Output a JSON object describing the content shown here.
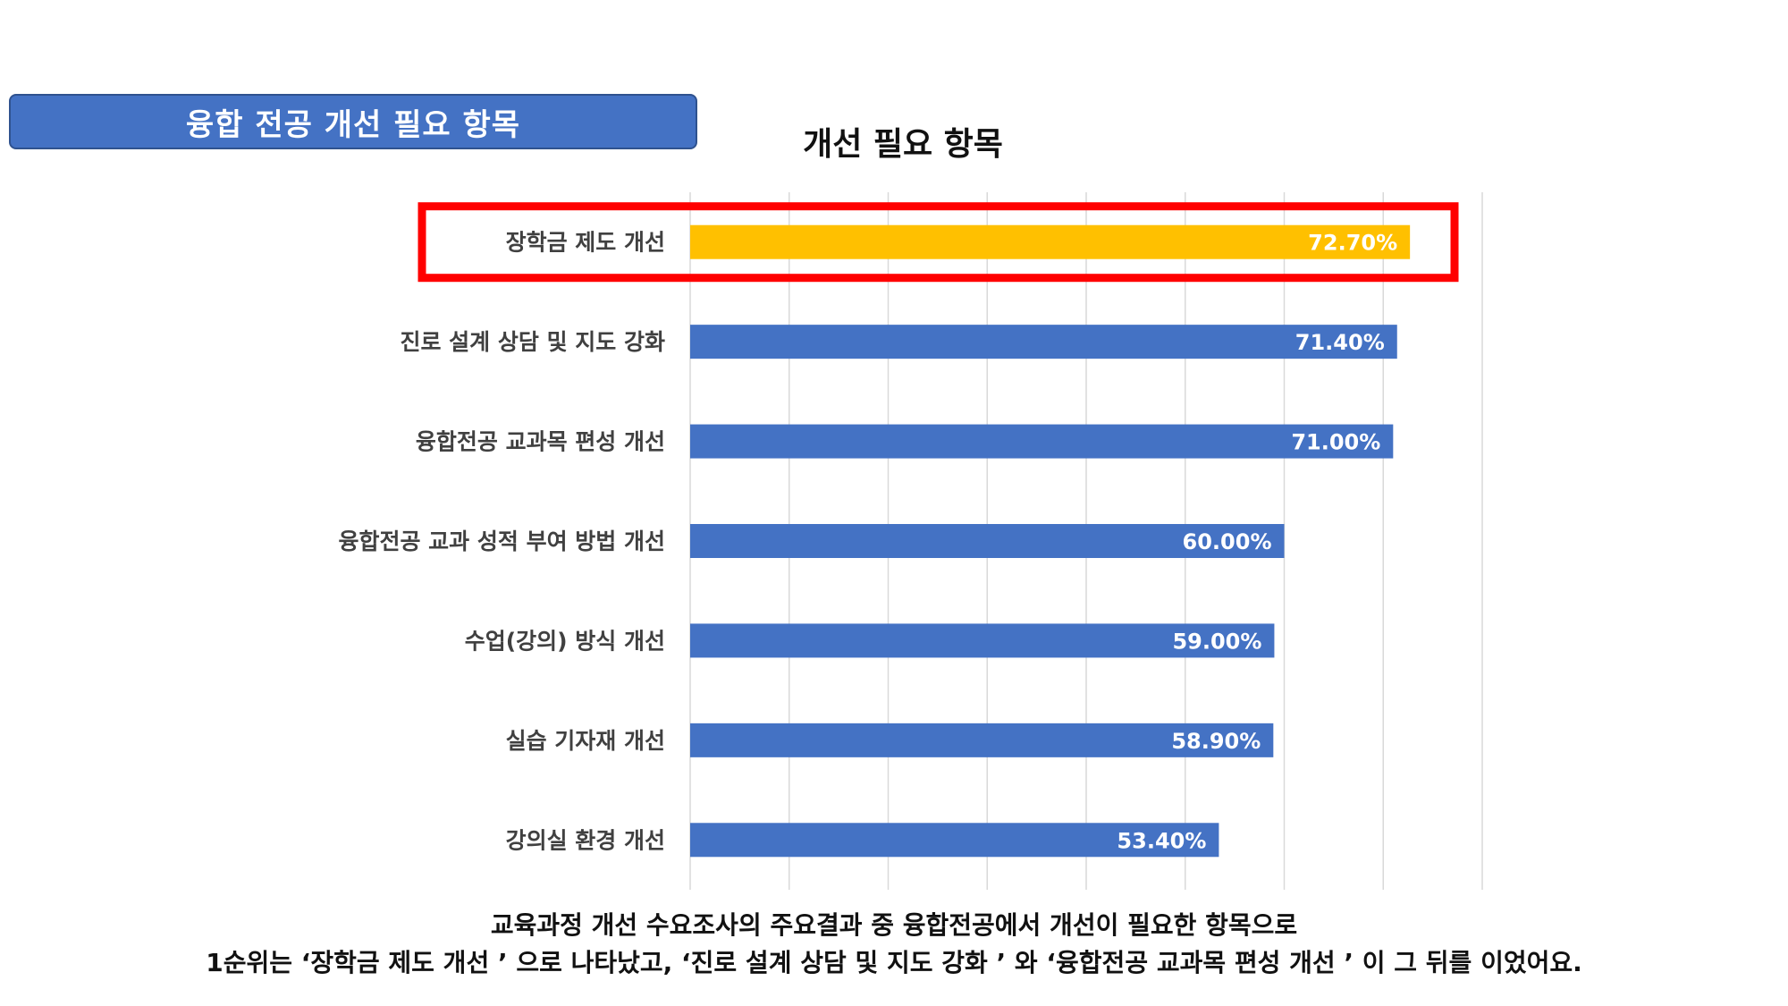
{
  "section_banner": {
    "label": "융합 전공 개선 필요 항목"
  },
  "chart_data": {
    "type": "bar",
    "orientation": "horizontal",
    "title": "개선 필요 항목",
    "categories": [
      "장학금 제도 개선",
      "진로 설계 상담 및 지도 강화",
      "융합전공 교과목 편성 개선",
      "융합전공 교과 성적 부여 방법 개선",
      "수업(강의) 방식 개선",
      "실습 기자재 개선",
      "강의실 환경 개선"
    ],
    "values": [
      72.7,
      71.4,
      71.0,
      60.0,
      59.0,
      58.9,
      53.4
    ],
    "data_labels": [
      "72.70%",
      "71.40%",
      "71.00%",
      "60.00%",
      "59.00%",
      "58.90%",
      "53.40%"
    ],
    "xlim": [
      0,
      80
    ],
    "grid": true,
    "colors": {
      "default": "#4472c4",
      "highlight": "#ffc000",
      "highlight_box": "#ff0000"
    },
    "highlight_index": 0
  },
  "caption": {
    "line1": "교육과정 개선 수요조사의 주요결과 중 융합전공에서 개선이 필요한 항목으로",
    "line2": "1순위는 ‘장학금 제도 개선 ’ 으로 나타났고, ‘진로 설계 상담 및 지도 강화 ’ 와 ‘융합전공 교과목 편성 개선 ’ 이 그 뒤를 이었어요."
  }
}
